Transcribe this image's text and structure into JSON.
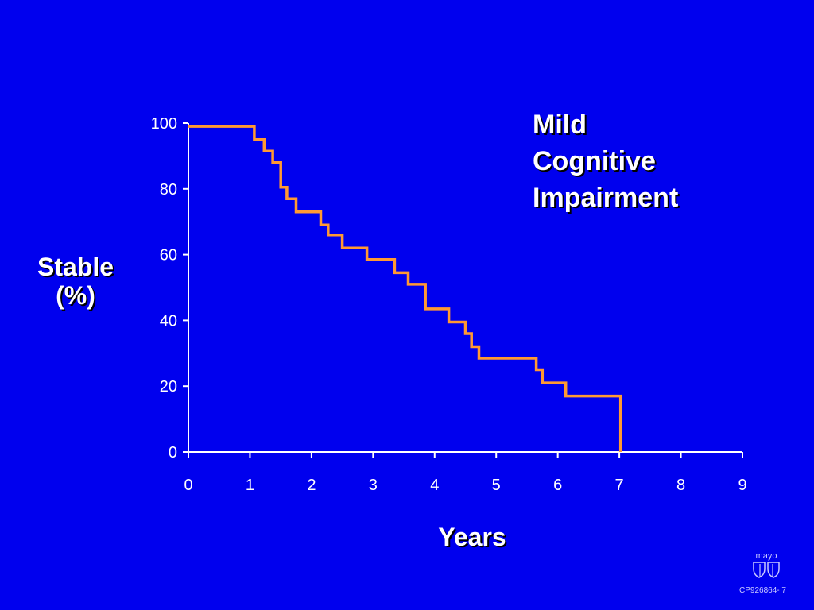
{
  "chart_data": {
    "type": "line",
    "title": "",
    "xlabel": "Years",
    "ylabel_lines": [
      "Stable",
      "(%)"
    ],
    "xlim": [
      0,
      9
    ],
    "ylim": [
      0,
      100
    ],
    "x_ticks": [
      "0",
      "1",
      "2",
      "3",
      "4",
      "5",
      "6",
      "7",
      "8",
      "9"
    ],
    "y_ticks": [
      "0",
      "20",
      "40",
      "60",
      "80",
      "100"
    ],
    "grid": false,
    "series": [
      {
        "name": "Mild Cognitive Impairment",
        "step": true,
        "color": "#ff9933",
        "x": [
          0,
          1.07,
          1.23,
          1.37,
          1.5,
          1.6,
          1.75,
          2.15,
          2.27,
          2.5,
          2.9,
          3.35,
          3.57,
          3.85,
          4.23,
          4.5,
          4.6,
          4.72,
          5.65,
          5.75,
          6.13,
          7.02,
          7.02
        ],
        "y": [
          99,
          95,
          91.5,
          88,
          80.5,
          77,
          73,
          69,
          66,
          62,
          58.5,
          54.5,
          51,
          43.5,
          39.5,
          36,
          32,
          28.5,
          25,
          21,
          17,
          17,
          0
        ]
      }
    ],
    "axis_color": "#ffffff"
  },
  "annotation_lines": [
    "Mild",
    "Cognitive",
    "Impairment"
  ],
  "logo_text": "mayo",
  "footer_code": "CP926864- 7"
}
